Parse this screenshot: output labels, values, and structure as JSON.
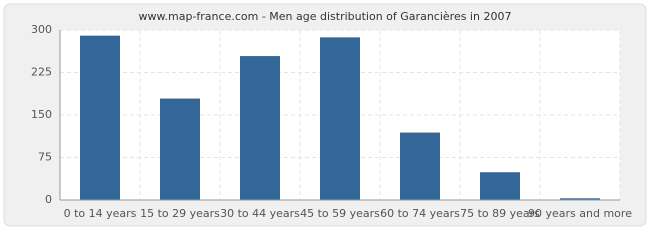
{
  "chart_data": {
    "type": "bar",
    "title": "www.map-france.com - Men age distribution of Garancières in 2007",
    "categories": [
      "0 to 14 years",
      "15 to 29 years",
      "30 to 44 years",
      "45 to 59 years",
      "60 to 74 years",
      "75 to 89 years",
      "90 years and more"
    ],
    "values": [
      290,
      179,
      254,
      287,
      119,
      49,
      3
    ],
    "color": "#336699",
    "ylim": [
      0,
      300
    ],
    "yticks": [
      0,
      75,
      150,
      225,
      300
    ],
    "grid": true
  }
}
